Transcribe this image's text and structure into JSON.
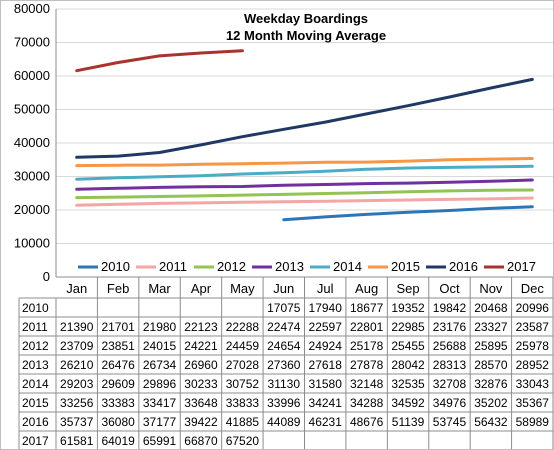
{
  "chart_data": {
    "type": "line",
    "title": "Weekday Boardings",
    "subtitle": "12 Month Moving Average",
    "categories": [
      "Jan",
      "Feb",
      "Mar",
      "Apr",
      "May",
      "Jun",
      "Jul",
      "Aug",
      "Sep",
      "Oct",
      "Nov",
      "Dec"
    ],
    "ylim": [
      0,
      80000
    ],
    "yticks": [
      "0",
      "10000",
      "20000",
      "30000",
      "40000",
      "50000",
      "60000",
      "70000",
      "80000"
    ],
    "grid": true,
    "legend_position": "bottom",
    "has_data_table": true,
    "series": [
      {
        "name": "2010",
        "color": "#2e75b6",
        "values": [
          null,
          null,
          null,
          null,
          null,
          17075,
          17940,
          18677,
          19352,
          19842,
          20468,
          20996
        ]
      },
      {
        "name": "2011",
        "color": "#f4a6a6",
        "values": [
          21390,
          21701,
          21980,
          22123,
          22288,
          22474,
          22597,
          22801,
          22985,
          23176,
          23327,
          23587
        ]
      },
      {
        "name": "2012",
        "color": "#92c353",
        "values": [
          23709,
          23851,
          24015,
          24221,
          24459,
          24654,
          24924,
          25178,
          25455,
          25688,
          25895,
          25978
        ]
      },
      {
        "name": "2013",
        "color": "#7030a0",
        "values": [
          26210,
          26476,
          26734,
          26960,
          27028,
          27360,
          27618,
          27878,
          28042,
          28313,
          28570,
          28952
        ]
      },
      {
        "name": "2014",
        "color": "#4bacc6",
        "values": [
          29203,
          29609,
          29896,
          30233,
          30752,
          31130,
          31580,
          32148,
          32535,
          32708,
          32876,
          33043
        ]
      },
      {
        "name": "2015",
        "color": "#f79646",
        "values": [
          33256,
          33383,
          33417,
          33648,
          33833,
          33996,
          34241,
          34288,
          34592,
          34976,
          35202,
          35367
        ]
      },
      {
        "name": "2016",
        "color": "#1f3864",
        "values": [
          35737,
          36080,
          37177,
          39422,
          41885,
          44089,
          46231,
          48676,
          51139,
          53745,
          56432,
          58989
        ]
      },
      {
        "name": "2017",
        "color": "#a9332f",
        "values": [
          61581,
          64019,
          65991,
          66870,
          67520,
          null,
          null,
          null,
          null,
          null,
          null,
          null
        ]
      }
    ]
  }
}
